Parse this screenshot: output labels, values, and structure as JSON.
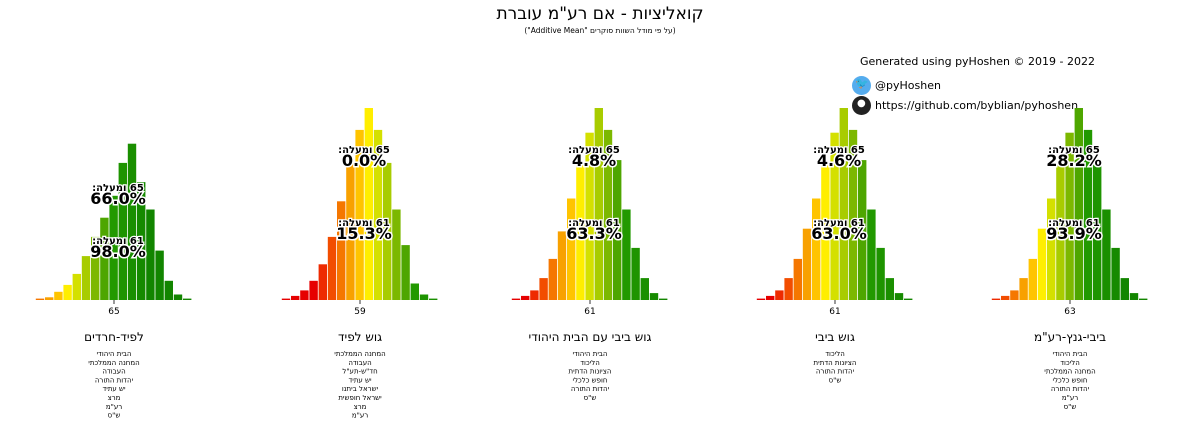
{
  "title": "קואליציות - אם רע\"מ עוברת",
  "subtitle": "(על פי מודל השוות סוקרים \"Additive Mean\")",
  "credit": {
    "generated": "Generated using pyHoshen © 2019 - 2022",
    "twitter": "@pyHoshen",
    "github": "https://github.com/byblian/pyhoshen",
    "twitter_icon": "twitter-icon",
    "github_icon": "github-icon"
  },
  "labels": {
    "above65": "65 ומעלה:",
    "above61": "61 ומעלה:"
  },
  "chart_data": [
    {
      "type": "bar",
      "title": "לפיד-חרדים",
      "x": [
        57,
        58,
        59,
        60,
        61,
        62,
        63,
        64,
        65,
        66,
        67,
        68,
        69,
        70,
        71,
        72,
        73
      ],
      "values": [
        0.5,
        1,
        3,
        5.5,
        9.5,
        16,
        23,
        30,
        38,
        50,
        57,
        43,
        33,
        18,
        7,
        2,
        0.5
      ],
      "tick": "65",
      "p65": "66.0%",
      "p61": "98.0%",
      "parties": [
        "הבית היהודי",
        "המחנה הממלכתי",
        "העבודה",
        "יהדות התורה",
        "יש עתיד",
        "מרצ",
        "רע\"מ",
        "ש\"ס"
      ]
    },
    {
      "type": "bar",
      "title": "גוש לפיד",
      "x": [
        51,
        52,
        53,
        54,
        55,
        56,
        57,
        58,
        59,
        60,
        61,
        62,
        63,
        64,
        65,
        66,
        67
      ],
      "values": [
        0.5,
        1.5,
        3.5,
        7,
        13,
        23,
        36,
        50,
        62,
        70,
        62,
        50,
        33,
        20,
        6,
        2,
        0.5
      ],
      "tick": "59",
      "p65": "0.0%",
      "p61": "15.3%",
      "parties": [
        "המחנה הממלכתי",
        "העבודה",
        "חד\"ש-תע\"ל",
        "יש עתיד",
        "ישראל ביתנו",
        "ישראל חופשית",
        "מרצ",
        "רע\"מ"
      ]
    },
    {
      "type": "bar",
      "title": "גוש ביבי עם הבית היהודי",
      "x": [
        53,
        54,
        55,
        56,
        57,
        58,
        59,
        60,
        61,
        62,
        63,
        64,
        65,
        66,
        67,
        68,
        69
      ],
      "values": [
        0.5,
        1.5,
        3.5,
        8,
        15,
        25,
        37,
        50,
        61,
        70,
        62,
        51,
        33,
        19,
        8,
        2.5,
        0.5
      ],
      "tick": "61",
      "p65": "4.8%",
      "p61": "63.3%",
      "parties": [
        "הבית היהודי",
        "הליכוד",
        "הציונות הדתית",
        "חופש כלכלי",
        "יהדות התורה",
        "ש\"ס"
      ]
    },
    {
      "type": "bar",
      "title": "גוש ביבי",
      "x": [
        53,
        54,
        55,
        56,
        57,
        58,
        59,
        60,
        61,
        62,
        63,
        64,
        65,
        66,
        67,
        68,
        69
      ],
      "values": [
        0.5,
        1.5,
        3.5,
        8,
        15,
        26,
        37,
        50,
        61,
        70,
        62,
        51,
        33,
        19,
        8,
        2.5,
        0.5
      ],
      "tick": "61",
      "p65": "4.6%",
      "p61": "63.0%",
      "parties": [
        "הליכוד",
        "הציונות הדתית",
        "יהדות התורה",
        "ש\"ס"
      ]
    },
    {
      "type": "bar",
      "title": "ביבי-גנץ-רע\"מ",
      "x": [
        55,
        56,
        57,
        58,
        59,
        60,
        61,
        62,
        63,
        64,
        65,
        66,
        67,
        68,
        69,
        70,
        71
      ],
      "values": [
        0.5,
        1.5,
        3.5,
        8,
        15,
        26,
        37,
        50,
        61,
        70,
        62,
        51,
        33,
        19,
        8,
        2.5,
        0.5
      ],
      "tick": "63",
      "p65": "28.2%",
      "p61": "93.9%",
      "parties": [
        "הבית היהודי",
        "הליכוד",
        "המחנה הממלכתי",
        "חופש כלכלי",
        "יהדות התורה",
        "רע\"מ",
        "ש\"ס"
      ]
    }
  ]
}
